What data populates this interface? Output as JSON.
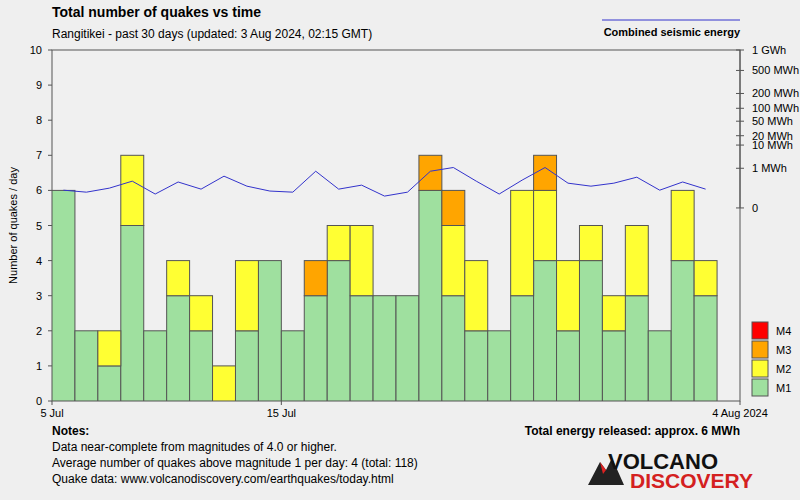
{
  "chart_data": {
    "type": "bar",
    "stacked": true,
    "title": "Total number of quakes vs time",
    "subtitle": "Rangitikei - past 30 days (updated: 3 Aug 2024, 02:15 GMT)",
    "ylabel": "Number of quakes / day",
    "categories": [
      null,
      null,
      null,
      null,
      null,
      null,
      null,
      null,
      null,
      null,
      null,
      null,
      null,
      null,
      null,
      null,
      null,
      null,
      null,
      null,
      null,
      null,
      null,
      null,
      null,
      null,
      null,
      null,
      null,
      null
    ],
    "xlim": [
      0,
      30
    ],
    "xticks": [
      {
        "value": 0,
        "label": "5 Jul"
      },
      {
        "value": 10,
        "label": "15 Jul"
      },
      {
        "value": 30,
        "label": "4 Aug 2024"
      }
    ],
    "ylim": [
      0,
      10
    ],
    "yticks": [
      0,
      1,
      2,
      3,
      4,
      5,
      6,
      7,
      8,
      9,
      10
    ],
    "y2lim": [
      0,
      1000
    ],
    "y2ticks": [
      {
        "value": 1000,
        "label": "1 GWh"
      },
      {
        "value": 500,
        "label": "500 MWh"
      },
      {
        "value": 200,
        "label": "200 MWh"
      },
      {
        "value": 100,
        "label": "100 MWh"
      },
      {
        "value": 50,
        "label": "50 MWh"
      },
      {
        "value": 20,
        "label": "20 MWh"
      },
      {
        "value": 10,
        "label": "10 MWh"
      },
      {
        "value": 1,
        "label": "1 MWh"
      },
      0
    ],
    "grid": false,
    "legend": "lower right",
    "series": [
      {
        "name": "M1",
        "type": "bar",
        "color": "#9fe09f",
        "values": [
          6,
          2,
          1,
          5,
          2,
          3,
          2,
          0,
          2,
          4,
          2,
          3,
          4,
          3,
          3,
          3,
          6,
          3,
          2,
          2,
          3,
          4,
          2,
          4,
          2,
          3,
          2,
          4,
          3,
          0
        ]
      },
      {
        "name": "M2",
        "type": "bar",
        "color": "#ffff33",
        "values": [
          0,
          0,
          1,
          2,
          0,
          1,
          1,
          1,
          2,
          0,
          0,
          0,
          1,
          2,
          0,
          0,
          0,
          2,
          2,
          0,
          3,
          2,
          2,
          1,
          1,
          2,
          0,
          2,
          1,
          0
        ]
      },
      {
        "name": "M3",
        "type": "bar",
        "color": "#ffa500",
        "values": [
          0,
          0,
          0,
          0,
          0,
          0,
          0,
          0,
          0,
          0,
          0,
          1,
          0,
          0,
          0,
          0,
          1,
          1,
          0,
          0,
          0,
          1,
          0,
          0,
          0,
          0,
          0,
          0,
          0,
          0
        ]
      },
      {
        "name": "M4",
        "type": "bar",
        "color": "#ff0000",
        "values": [
          0,
          0,
          0,
          0,
          0,
          0,
          0,
          0,
          0,
          0,
          0,
          0,
          0,
          0,
          0,
          0,
          0,
          0,
          0,
          0,
          0,
          0,
          0,
          0,
          0,
          0,
          0,
          0,
          0,
          0
        ]
      },
      {
        "name": "Combined seismic energy",
        "type": "line",
        "axis": "y2",
        "color": "#3333cc",
        "values": [
          0.018,
          0.01,
          0.031,
          0.14,
          0.0053,
          0.12,
          0.024,
          0.33,
          0.05,
          0.014,
          0.01,
          0.68,
          0.024,
          0.063,
          0.0024,
          0.01,
          0.68,
          1.1,
          0.14,
          0.0053,
          0.17,
          1.1,
          0.095,
          0.05,
          0.095,
          0.28,
          0.018,
          0.12,
          0.024,
          null
        ]
      }
    ],
    "notes_title": "Notes:",
    "notes": [
      "Data near-complete from magnitudes of 4.0 or higher.",
      "Average number of quakes above magnitude 1 per day: 4 (total: 118)",
      "Quake data: www.volcanodiscovery.com/earthquakes/today.html"
    ],
    "total_energy": "Total energy released: approx. 6 MWh",
    "logo": [
      "VOLCANO",
      "DISCOVERY"
    ]
  }
}
